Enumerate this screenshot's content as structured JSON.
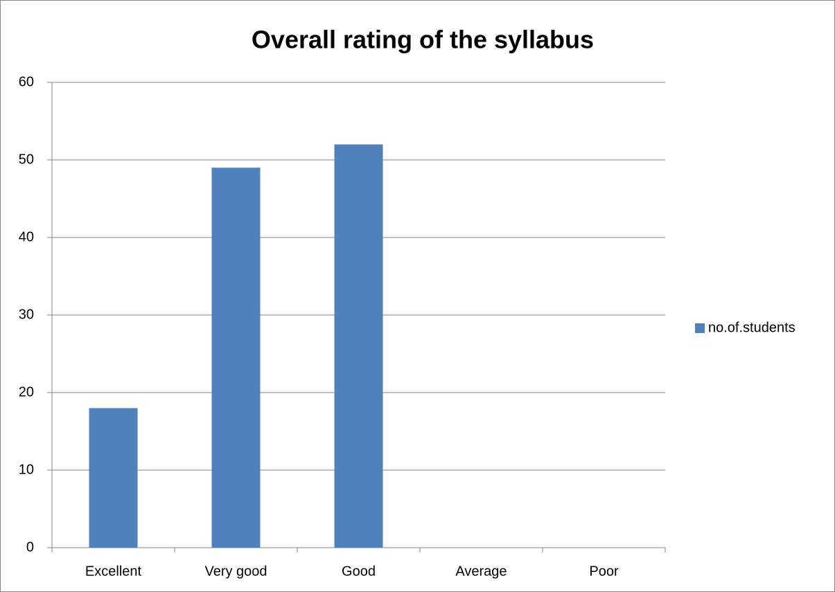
{
  "chart_data": {
    "type": "bar",
    "title": "Overall rating of the syllabus",
    "categories": [
      "Excellent",
      "Very good",
      "Good",
      "Average",
      "Poor"
    ],
    "series": [
      {
        "name": "no.of.students",
        "color": "#4f81bd",
        "values": [
          18,
          49,
          52,
          0,
          0
        ]
      }
    ],
    "ylim": [
      0,
      60
    ],
    "yticks": [
      0,
      10,
      20,
      30,
      40,
      50,
      60
    ],
    "grid": true,
    "legend": "right"
  }
}
